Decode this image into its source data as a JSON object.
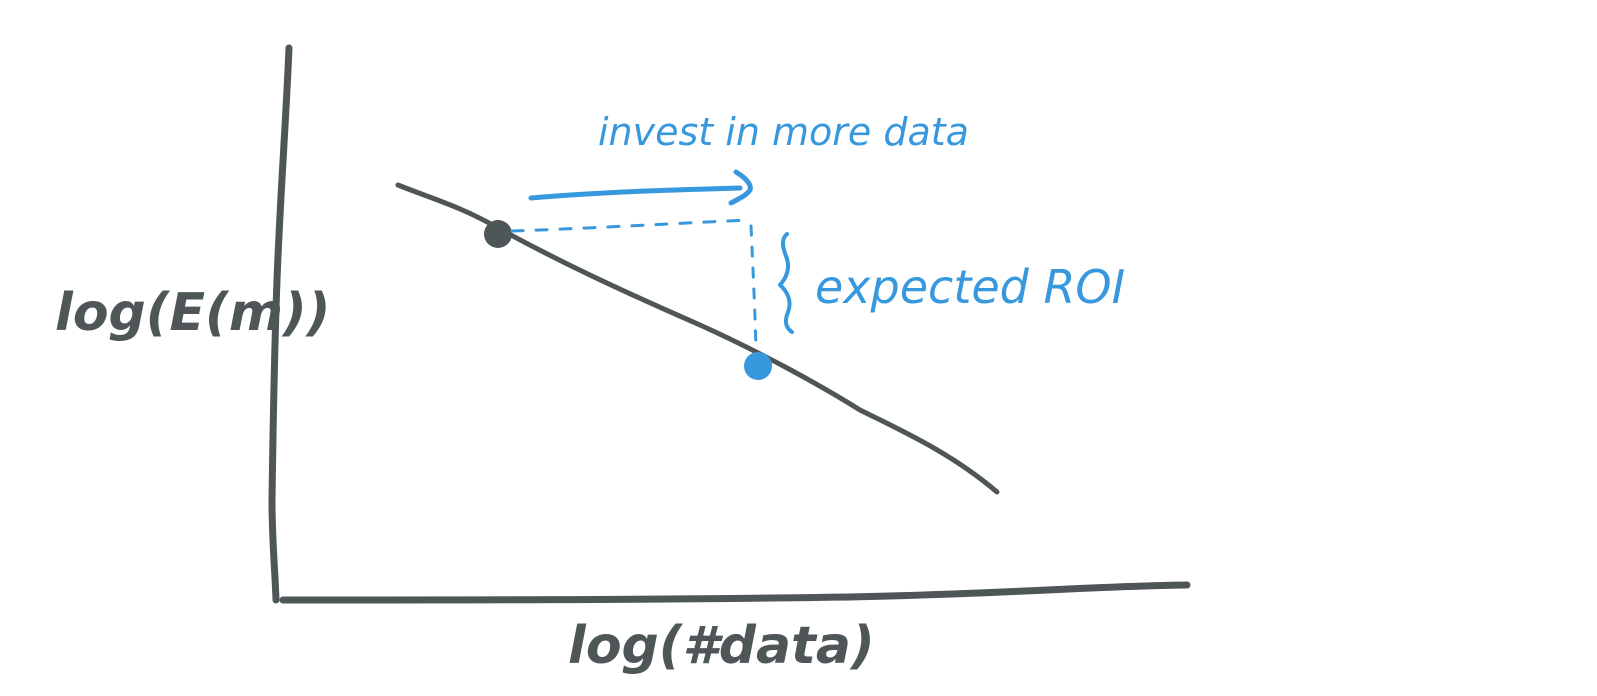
{
  "labels": {
    "y_axis": "log(E(m))",
    "x_axis": "log(#data)",
    "invest": "invest in more data",
    "roi": "expected ROI"
  },
  "colors": {
    "ink": "#4f5657",
    "accent": "#3898dd",
    "background": "#ffffff"
  },
  "icons": {
    "arrow": "right-arrow-icon",
    "brace": "curly-brace-icon"
  }
}
